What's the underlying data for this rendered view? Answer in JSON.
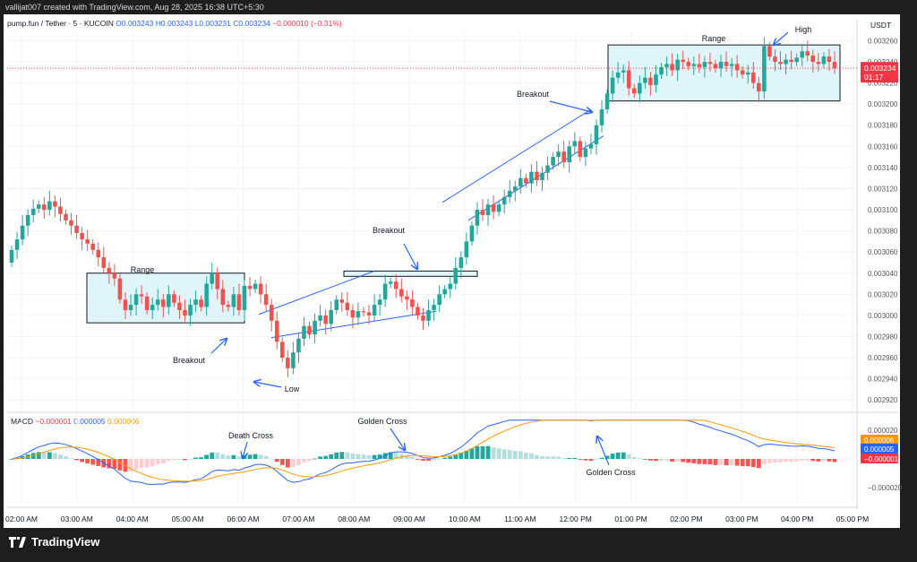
{
  "caption": "vallijat007 created with TradingView.com, Aug 28, 2025 16:38 UTC+5:30",
  "header": {
    "symbol": "pump.fun / Tether · 5 · KUCOIN",
    "open": "O0.003243",
    "high": "H0.003243",
    "low": "L0.003231",
    "close": "C0.003234",
    "change": "−0.000010 (−0.31%)"
  },
  "currency": "USDT",
  "last_price": "0.003234",
  "countdown": "01:17",
  "brand": "TradingView",
  "colors": {
    "up": "#26a69a",
    "down": "#ef5350",
    "range_fill": "#e0f5f9",
    "macd": "#2962ff",
    "signal": "#ff9800",
    "accent": "#2962ff"
  },
  "macd_header": {
    "name": "MACD",
    "v1": "−0.000001",
    "v2": "0.000005",
    "v3": "0.000006"
  },
  "chart_data": [
    {
      "type": "candlestick",
      "x_ticks": [
        "02:00 AM",
        "03:00 AM",
        "04:00 AM",
        "05:00 AM",
        "06:00 AM",
        "07:00 AM",
        "08:00 AM",
        "09:00 AM",
        "10:00 AM",
        "11:00 AM",
        "12:00 PM",
        "01:00 PM",
        "02:00 PM",
        "03:00 PM",
        "04:00 PM",
        "05:00 PM"
      ],
      "y_ticks": [
        "0.003260",
        "0.003240",
        "0.003220",
        "0.003200",
        "0.003180",
        "0.003160",
        "0.003140",
        "0.003120",
        "0.003100",
        "0.003080",
        "0.003060",
        "0.003040",
        "0.003020",
        "0.003000",
        "0.002980",
        "0.002960",
        "0.002940",
        "0.002920"
      ],
      "ylim": [
        0.00291,
        0.003268
      ],
      "close_series": [
        0.003062,
        0.003072,
        0.003085,
        0.003095,
        0.003101,
        0.003105,
        0.0031,
        0.003108,
        0.003103,
        0.003096,
        0.00309,
        0.003085,
        0.003078,
        0.003072,
        0.003068,
        0.003062,
        0.003055,
        0.003045,
        0.00304,
        0.003035,
        0.003015,
        0.003005,
        0.00301,
        0.00302,
        0.003018,
        0.003005,
        0.00301,
        0.003015,
        0.003008,
        0.00302,
        0.003012,
        0.003005,
        0.003,
        0.00301,
        0.003015,
        0.003008,
        0.00303,
        0.00304,
        0.003025,
        0.00301,
        0.003008,
        0.00302,
        0.003005,
        0.003028,
        0.003025,
        0.00303,
        0.00302,
        0.00301,
        0.002995,
        0.002975,
        0.00296,
        0.00295,
        0.002965,
        0.002978,
        0.00299,
        0.002982,
        0.002995,
        0.003,
        0.002992,
        0.003005,
        0.003015,
        0.003012,
        0.003005,
        0.002998,
        0.003004,
        0.003003,
        0.003,
        0.00301,
        0.003015,
        0.00303,
        0.003032,
        0.003025,
        0.003018,
        0.003015,
        0.003008,
        0.003,
        0.002995,
        0.003005,
        0.00301,
        0.00302,
        0.003025,
        0.00303,
        0.003045,
        0.003055,
        0.00307,
        0.003085,
        0.0031,
        0.003095,
        0.003105,
        0.003098,
        0.003105,
        0.003112,
        0.003118,
        0.003122,
        0.00313,
        0.003125,
        0.003136,
        0.003128,
        0.003135,
        0.003142,
        0.00315,
        0.003155,
        0.003145,
        0.00316,
        0.003165,
        0.00315,
        0.003158,
        0.003162,
        0.00318,
        0.003195,
        0.00321,
        0.003225,
        0.00323,
        0.003232,
        0.003215,
        0.00321,
        0.00322,
        0.003225,
        0.003218,
        0.003228,
        0.003235,
        0.003238,
        0.003232,
        0.003242,
        0.00324,
        0.003236,
        0.003238,
        0.003235,
        0.00324,
        0.003238,
        0.003234,
        0.00324,
        0.003236,
        0.003238,
        0.003232,
        0.003228,
        0.00323,
        0.00322,
        0.003212,
        0.003255,
        0.003245,
        0.00324,
        0.003238,
        0.003242,
        0.00324,
        0.003244,
        0.00325,
        0.003246,
        0.00324,
        0.003238,
        0.003245,
        0.00324,
        0.003234
      ],
      "low_point": 0.002945,
      "high_point": 0.003256
    },
    {
      "type": "macd",
      "y_ticks": [
        "0.000020",
        "-0.000020"
      ],
      "values_current": {
        "macd": "-0.000001",
        "signal": "0.000005",
        "histogram": "0.000006"
      }
    }
  ],
  "annotations": {
    "range1": "Range",
    "breakout1": "Breakout",
    "low": "Low",
    "breakout2": "Breakout",
    "breakout3": "Breakout",
    "range2": "Range",
    "high": "High",
    "death_cross": "Death Cross",
    "golden_cross1": "Golden Cross",
    "golden_cross2": "Golden Cross"
  }
}
